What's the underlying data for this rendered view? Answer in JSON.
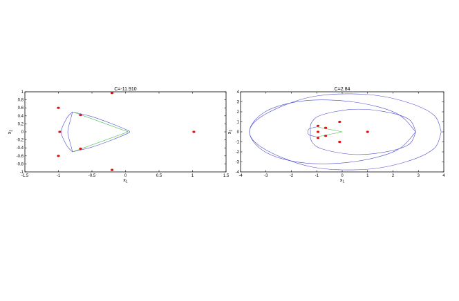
{
  "chart_data": [
    {
      "type": "line",
      "title": "C=-11.910",
      "xlabel": "x1",
      "ylabel": "x2",
      "xlim": [
        -1.5,
        1.5
      ],
      "ylim": [
        -1,
        1
      ],
      "xticks": [
        -1.5,
        -1,
        -0.5,
        0,
        0.5,
        1,
        1.5
      ],
      "yticks": [
        -1,
        -0.8,
        -0.6,
        -0.4,
        -0.2,
        0,
        0.2,
        0.4,
        0.6,
        0.8,
        1
      ],
      "xtick_labels": [
        "-1.5",
        "-1",
        "-0.5",
        "0",
        "0.5",
        "1",
        "1.5"
      ],
      "ytick_labels": [
        "-1",
        "-0.8",
        "-0.6",
        "-0.4",
        "-0.2",
        "0",
        "0.2",
        "0.4",
        "0.6",
        "0.8",
        "1"
      ],
      "colors": {
        "curve": "#4a4ad0",
        "triangle": "#3cb83c",
        "point": "#e01010"
      },
      "series": [
        {
          "style": "curve",
          "x": [
            -0.79,
            -0.5,
            -0.2,
            0.03,
            0.06,
            0.03,
            -0.2,
            -0.5,
            -0.79
          ],
          "y": [
            0.5,
            0.38,
            0.2,
            0.04,
            0,
            -0.04,
            -0.2,
            -0.38,
            -0.5
          ]
        },
        {
          "style": "curve",
          "x": [
            -0.79,
            -0.86,
            -0.92,
            -0.955,
            -0.96,
            -0.955,
            -0.92,
            -0.86,
            -0.79
          ],
          "y": [
            0.5,
            0.38,
            0.2,
            0.06,
            0,
            -0.06,
            -0.2,
            -0.38,
            -0.5
          ]
        },
        {
          "style": "curve",
          "x": [
            -0.79,
            -0.82,
            -0.85,
            -0.86,
            -0.85,
            -0.82,
            -0.79
          ],
          "y": [
            0.5,
            0.3,
            0.12,
            0,
            -0.12,
            -0.3,
            -0.5
          ]
        },
        {
          "style": "triangle",
          "x": [
            -0.79,
            0.04,
            -0.79
          ],
          "y": [
            0.5,
            0,
            -0.5
          ]
        },
        {
          "style": "points",
          "x": [
            -1.0,
            -0.98,
            -1.0,
            -0.67,
            -0.67,
            -0.2,
            -0.2,
            1.02
          ],
          "y": [
            0.6,
            0,
            -0.6,
            0.42,
            -0.42,
            0.97,
            -0.95,
            0
          ]
        }
      ]
    },
    {
      "type": "line",
      "title": "C=2.84",
      "xlabel": "x1",
      "ylabel": "x2",
      "xlim": [
        -4,
        4
      ],
      "ylim": [
        -4,
        4
      ],
      "xticks": [
        -4,
        -3,
        -2,
        -1,
        0,
        1,
        2,
        3,
        4
      ],
      "yticks": [
        -4,
        -3,
        -2,
        -1,
        0,
        1,
        2,
        3,
        4
      ],
      "xtick_labels": [
        "-4",
        "-3",
        "-2",
        "-1",
        "0",
        "1",
        "2",
        "3",
        "4"
      ],
      "ytick_labels": [
        "-4",
        "-3",
        "-2",
        "-1",
        "0",
        "1",
        "2",
        "3",
        "4"
      ],
      "colors": {
        "curve": "#4a4ad0",
        "triangle": "#3cb83c",
        "point": "#e01010"
      },
      "series": [
        {
          "style": "curve",
          "x": [
            3.9,
            3.6,
            2.5,
            0.9,
            -1.2,
            -3.0,
            -3.65,
            -3.0,
            -1.2,
            0.9,
            2.5,
            3.6,
            3.9
          ],
          "y": [
            0,
            1.7,
            3.0,
            3.75,
            3.5,
            1.8,
            0,
            -1.8,
            -3.5,
            -3.75,
            -3.0,
            -1.7,
            0
          ]
        },
        {
          "style": "curve",
          "x": [
            2.9,
            2.6,
            1.6,
            0.4,
            -0.8,
            -1.2,
            -1.25,
            -1.2,
            -0.8,
            0.4,
            1.6,
            2.6,
            2.9
          ],
          "y": [
            0,
            1.3,
            2.05,
            2.25,
            1.7,
            0.95,
            0,
            -0.95,
            -1.7,
            -2.25,
            -2.05,
            -1.3,
            0
          ]
        },
        {
          "style": "curve",
          "x": [
            -1.0,
            -1.3,
            -1.35,
            -1.3,
            -1.0
          ],
          "y": [
            0.5,
            0.3,
            0,
            -0.3,
            -0.5
          ]
        },
        {
          "style": "curve",
          "x": [
            2.9,
            2.1,
            0.4,
            -1.5,
            -3.0,
            -3.65,
            -3.0,
            -1.5,
            0.4,
            2.1,
            2.9
          ],
          "y": [
            0,
            1.9,
            3.0,
            3.1,
            2.05,
            0,
            -2.05,
            -3.1,
            -3.0,
            -1.9,
            0
          ]
        },
        {
          "style": "triangle",
          "x": [
            -1.0,
            0.0,
            -1.0
          ],
          "y": [
            0.5,
            0,
            -0.5
          ]
        },
        {
          "style": "points",
          "x": [
            -0.1,
            -0.65,
            -0.95,
            -0.95,
            -0.65,
            -0.1,
            -0.95,
            1.0
          ],
          "y": [
            1.0,
            0.4,
            0.6,
            0,
            -0.4,
            -1.0,
            -0.6,
            0
          ]
        }
      ]
    }
  ]
}
